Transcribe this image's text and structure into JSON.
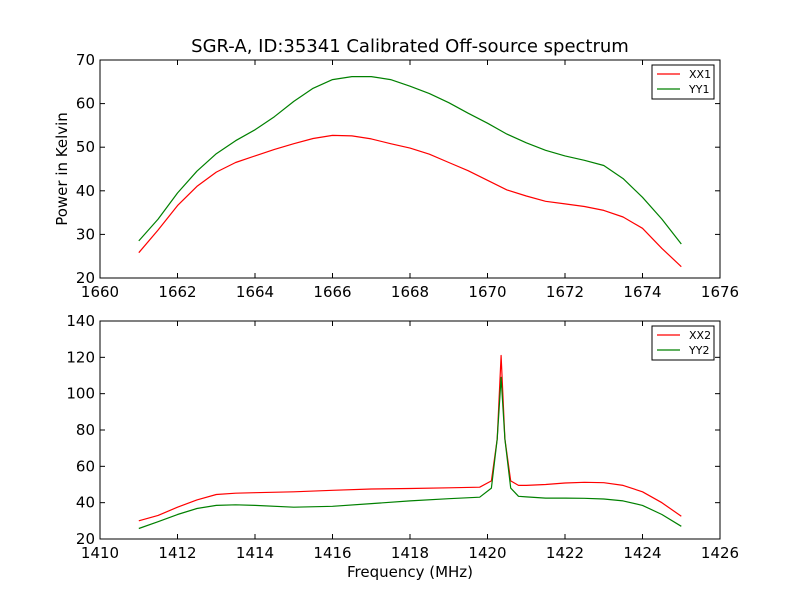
{
  "figure_title": "SGR-A, ID:35341 Calibrated Off-source spectrum",
  "colors": {
    "red": "#ff0000",
    "green": "#008000"
  },
  "chart_data": [
    {
      "type": "line",
      "title": "SGR-A, ID:35341 Calibrated Off-source spectrum",
      "xlabel": "",
      "ylabel": "Power in Kelvin",
      "xlim": [
        1660,
        1676
      ],
      "ylim": [
        20,
        70
      ],
      "xticks": [
        1660,
        1662,
        1664,
        1666,
        1668,
        1670,
        1672,
        1674,
        1676
      ],
      "yticks": [
        20,
        30,
        40,
        50,
        60,
        70
      ],
      "legend": "top-right",
      "grid": false,
      "series": [
        {
          "name": "XX1",
          "color": "#ff0000",
          "points": [
            [
              1661.0,
              25.8
            ],
            [
              1661.5,
              31.0
            ],
            [
              1662.0,
              36.6
            ],
            [
              1662.5,
              41.0
            ],
            [
              1663.0,
              44.3
            ],
            [
              1663.5,
              46.5
            ],
            [
              1664.0,
              48.0
            ],
            [
              1664.5,
              49.5
            ],
            [
              1665.0,
              50.8
            ],
            [
              1665.5,
              52.0
            ],
            [
              1666.0,
              52.7
            ],
            [
              1666.5,
              52.6
            ],
            [
              1667.0,
              51.9
            ],
            [
              1667.5,
              50.8
            ],
            [
              1668.0,
              49.8
            ],
            [
              1668.5,
              48.4
            ],
            [
              1669.0,
              46.5
            ],
            [
              1669.5,
              44.6
            ],
            [
              1670.0,
              42.4
            ],
            [
              1670.5,
              40.2
            ],
            [
              1671.0,
              38.8
            ],
            [
              1671.5,
              37.6
            ],
            [
              1672.0,
              37.0
            ],
            [
              1672.5,
              36.4
            ],
            [
              1673.0,
              35.5
            ],
            [
              1673.5,
              34.0
            ],
            [
              1674.0,
              31.4
            ],
            [
              1674.5,
              26.8
            ],
            [
              1675.0,
              22.6
            ]
          ]
        },
        {
          "name": "YY1",
          "color": "#008000",
          "points": [
            [
              1661.0,
              28.5
            ],
            [
              1661.5,
              33.5
            ],
            [
              1662.0,
              39.5
            ],
            [
              1662.5,
              44.5
            ],
            [
              1663.0,
              48.5
            ],
            [
              1663.5,
              51.5
            ],
            [
              1664.0,
              54.0
            ],
            [
              1664.5,
              57.0
            ],
            [
              1665.0,
              60.5
            ],
            [
              1665.5,
              63.5
            ],
            [
              1666.0,
              65.5
            ],
            [
              1666.5,
              66.2
            ],
            [
              1667.0,
              66.2
            ],
            [
              1667.5,
              65.5
            ],
            [
              1668.0,
              64.0
            ],
            [
              1668.5,
              62.3
            ],
            [
              1669.0,
              60.2
            ],
            [
              1669.5,
              57.8
            ],
            [
              1670.0,
              55.5
            ],
            [
              1670.5,
              53.0
            ],
            [
              1671.0,
              51.0
            ],
            [
              1671.5,
              49.3
            ],
            [
              1672.0,
              48.0
            ],
            [
              1672.5,
              47.0
            ],
            [
              1673.0,
              45.8
            ],
            [
              1673.5,
              42.8
            ],
            [
              1674.0,
              38.5
            ],
            [
              1674.5,
              33.5
            ],
            [
              1675.0,
              27.8
            ]
          ]
        }
      ]
    },
    {
      "type": "line",
      "title": "",
      "xlabel": "Frequency (MHz)",
      "ylabel": "",
      "xlim": [
        1410,
        1426
      ],
      "ylim": [
        20,
        140
      ],
      "xticks": [
        1410,
        1412,
        1414,
        1416,
        1418,
        1420,
        1422,
        1424,
        1426
      ],
      "yticks": [
        20,
        40,
        60,
        80,
        100,
        120,
        140
      ],
      "legend": "top-right",
      "grid": false,
      "series": [
        {
          "name": "XX2",
          "color": "#ff0000",
          "points": [
            [
              1411.0,
              30.0
            ],
            [
              1411.5,
              33.0
            ],
            [
              1412.0,
              37.5
            ],
            [
              1412.5,
              41.5
            ],
            [
              1413.0,
              44.5
            ],
            [
              1413.5,
              45.2
            ],
            [
              1414.0,
              45.5
            ],
            [
              1415.0,
              46.0
            ],
            [
              1416.0,
              46.8
            ],
            [
              1417.0,
              47.5
            ],
            [
              1418.0,
              47.8
            ],
            [
              1419.0,
              48.2
            ],
            [
              1419.8,
              48.5
            ],
            [
              1420.1,
              52.0
            ],
            [
              1420.25,
              75.0
            ],
            [
              1420.35,
              121.0
            ],
            [
              1420.45,
              75.0
            ],
            [
              1420.6,
              52.0
            ],
            [
              1420.8,
              49.5
            ],
            [
              1421.0,
              49.5
            ],
            [
              1421.5,
              50.0
            ],
            [
              1422.0,
              50.8
            ],
            [
              1422.5,
              51.2
            ],
            [
              1423.0,
              51.0
            ],
            [
              1423.5,
              49.5
            ],
            [
              1424.0,
              46.0
            ],
            [
              1424.5,
              40.0
            ],
            [
              1425.0,
              32.5
            ]
          ]
        },
        {
          "name": "YY2",
          "color": "#008000",
          "points": [
            [
              1411.0,
              25.8
            ],
            [
              1411.5,
              29.5
            ],
            [
              1412.0,
              33.5
            ],
            [
              1412.5,
              36.8
            ],
            [
              1413.0,
              38.5
            ],
            [
              1413.5,
              38.8
            ],
            [
              1414.0,
              38.5
            ],
            [
              1415.0,
              37.5
            ],
            [
              1416.0,
              38.0
            ],
            [
              1417.0,
              39.5
            ],
            [
              1418.0,
              41.0
            ],
            [
              1419.0,
              42.2
            ],
            [
              1419.8,
              43.0
            ],
            [
              1420.1,
              48.0
            ],
            [
              1420.25,
              75.0
            ],
            [
              1420.35,
              109.0
            ],
            [
              1420.45,
              75.0
            ],
            [
              1420.6,
              48.0
            ],
            [
              1420.8,
              43.5
            ],
            [
              1421.0,
              43.2
            ],
            [
              1421.5,
              42.5
            ],
            [
              1422.0,
              42.5
            ],
            [
              1422.5,
              42.4
            ],
            [
              1423.0,
              42.0
            ],
            [
              1423.5,
              41.0
            ],
            [
              1424.0,
              38.5
            ],
            [
              1424.5,
              33.5
            ],
            [
              1425.0,
              27.0
            ]
          ]
        }
      ]
    }
  ]
}
